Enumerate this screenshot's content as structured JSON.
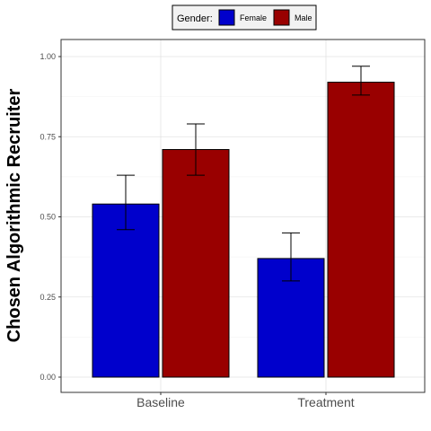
{
  "chart_data": {
    "type": "bar",
    "title": "",
    "xlabel": "",
    "ylabel": "Chosen Algorithmic Recruiter",
    "ylim": [
      0,
      1.05
    ],
    "yticks": [
      "0.00",
      "0.25",
      "0.50",
      "0.75",
      "1.00"
    ],
    "ytick_values": [
      0,
      0.25,
      0.5,
      0.75,
      1.0
    ],
    "categories": [
      "Baseline",
      "Treatment"
    ],
    "grid": true,
    "legend": {
      "title": "Gender:",
      "position": "top"
    },
    "series": [
      {
        "name": "Female",
        "color": "#0000cc",
        "values": [
          0.54,
          0.37
        ],
        "error_low": [
          0.46,
          0.3
        ],
        "error_high": [
          0.63,
          0.45
        ]
      },
      {
        "name": "Male",
        "color": "#990000",
        "values": [
          0.71,
          0.92
        ],
        "error_low": [
          0.63,
          0.88
        ],
        "error_high": [
          0.79,
          0.97
        ]
      }
    ]
  }
}
